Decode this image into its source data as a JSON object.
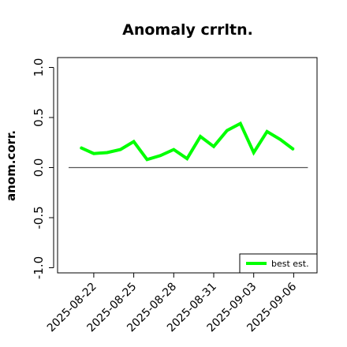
{
  "chart_data": {
    "type": "line",
    "title": "Anomaly crrltn.",
    "xlabel": "",
    "ylabel": "anom.corr.",
    "ylim": [
      -1.0,
      1.0
    ],
    "yticks": [
      "-1.0",
      "-0.5",
      "0.0",
      "0.5",
      "1.0"
    ],
    "x": [
      "2025-08-21",
      "2025-08-22",
      "2025-08-23",
      "2025-08-24",
      "2025-08-25",
      "2025-08-26",
      "2025-08-27",
      "2025-08-28",
      "2025-08-29",
      "2025-08-30",
      "2025-08-31",
      "2025-09-01",
      "2025-09-02",
      "2025-09-03",
      "2025-09-04",
      "2025-09-05",
      "2025-09-06"
    ],
    "xticks": [
      "2025-08-22",
      "2025-08-25",
      "2025-08-28",
      "2025-08-31",
      "2025-09-03",
      "2025-09-06"
    ],
    "highlighted_xtick": "2025-08-28",
    "highlight_color": "#228b22",
    "series": [
      {
        "name": "best est.",
        "color": "#00ff00",
        "values": [
          0.2,
          0.14,
          0.15,
          0.18,
          0.26,
          0.08,
          0.12,
          0.18,
          0.09,
          0.31,
          0.21,
          0.37,
          0.44,
          0.15,
          0.36,
          0.28,
          0.18
        ]
      }
    ],
    "reference_line": {
      "y": 0.0,
      "color": "#555555"
    },
    "legend_position": "bottom-right",
    "grid": false
  }
}
